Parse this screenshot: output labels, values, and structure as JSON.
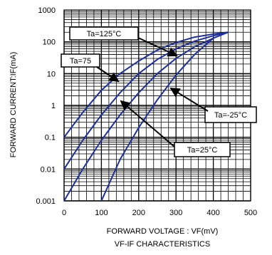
{
  "chart_data": {
    "type": "line",
    "caption": "VF-IF CHARACTERISTICS",
    "xlabel": "FORWARD VOLTAGE : VF(mV)",
    "ylabel": "FORWARD CURRENT:IF(mA)",
    "xlim": [
      0,
      500
    ],
    "ylim": [
      0.001,
      1000
    ],
    "yscale": "log",
    "grid": true,
    "x_ticks": [
      "0",
      "100",
      "200",
      "300",
      "400",
      "500"
    ],
    "y_ticks": [
      "0.001",
      "0.01",
      "0.1",
      "1",
      "10",
      "100",
      "1000"
    ],
    "series": [
      {
        "name": "Ta=125°C",
        "x": [
          0,
          50,
          100,
          150,
          200,
          250,
          300,
          350,
          400,
          440
        ],
        "y": [
          0.1,
          0.6,
          3,
          10,
          25,
          55,
          95,
          140,
          175,
          200
        ]
      },
      {
        "name": "Ta=75",
        "x": [
          0,
          50,
          100,
          150,
          200,
          250,
          300,
          350,
          400,
          440
        ],
        "y": [
          0.01,
          0.08,
          0.5,
          2.5,
          10,
          28,
          60,
          105,
          155,
          200
        ]
      },
      {
        "name": "Ta=25°C",
        "x": [
          100,
          150,
          200,
          250,
          300,
          350,
          400
        ],
        "y": [
          0.001,
          0.02,
          0.2,
          1.5,
          9,
          40,
          130
        ]
      },
      {
        "name": "Ta=-25°C",
        "x": [
          0,
          50,
          100,
          150,
          200,
          250,
          300,
          350,
          400,
          440
        ],
        "y": [
          0.001,
          0.01,
          0.08,
          0.5,
          2.5,
          10,
          30,
          70,
          130,
          200
        ]
      }
    ],
    "annotations": [
      {
        "label": "Ta=125°C"
      },
      {
        "label": "Ta=75"
      },
      {
        "label": "Ta=-25°C"
      },
      {
        "label": "Ta=25°C"
      }
    ]
  }
}
